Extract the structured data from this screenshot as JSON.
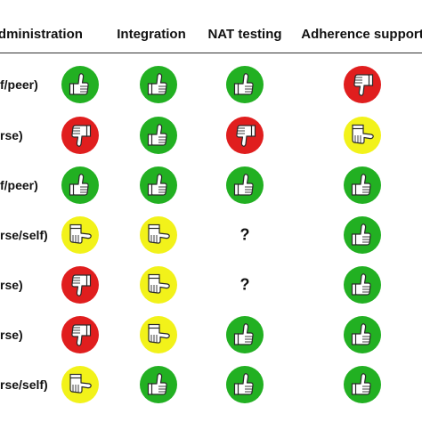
{
  "headers": [
    "Administration",
    "Integration",
    "NAT testing",
    "Adherence support"
  ],
  "rows": [
    {
      "label": "f/peer)",
      "cells": [
        "up",
        "up",
        "up",
        "down"
      ]
    },
    {
      "label": "rse)",
      "cells": [
        "down",
        "up",
        "down",
        "side"
      ]
    },
    {
      "label": "f/peer)",
      "cells": [
        "up",
        "up",
        "up",
        "up"
      ]
    },
    {
      "label": "rse/self)",
      "cells": [
        "side",
        "side",
        "unknown",
        "up"
      ]
    },
    {
      "label": "rse)",
      "cells": [
        "down",
        "side",
        "unknown",
        "up"
      ]
    },
    {
      "label": "rse)",
      "cells": [
        "down",
        "side",
        "up",
        "up"
      ]
    },
    {
      "label": "rse/self)",
      "cells": [
        "side",
        "up",
        "up",
        "up"
      ]
    }
  ],
  "symbols": {
    "up": {
      "icon": "thumbs-up-icon",
      "color": "#22b022"
    },
    "down": {
      "icon": "thumbs-down-icon",
      "color": "#e01e1e"
    },
    "side": {
      "icon": "thumbs-side-icon",
      "color": "#f2f21a"
    },
    "unknown": {
      "text": "?"
    }
  }
}
